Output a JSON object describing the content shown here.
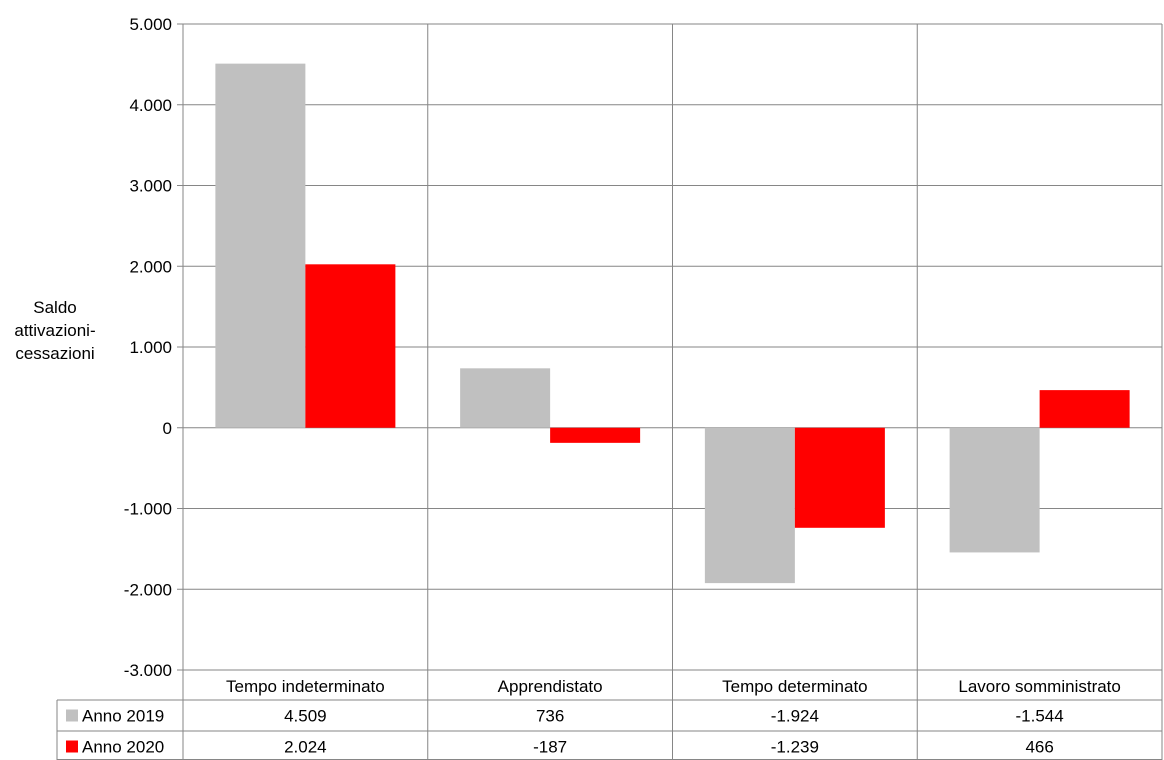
{
  "chart_data": {
    "type": "bar",
    "categories": [
      "Tempo indeterminato",
      "Apprendistato",
      "Tempo determinato",
      "Lavoro somministrato"
    ],
    "series": [
      {
        "name": "Anno 2019",
        "values": [
          4509,
          736,
          -1924,
          -1544
        ],
        "labels": [
          "4.509",
          "736",
          "-1.924",
          "-1.544"
        ],
        "color": "#c0c0c0"
      },
      {
        "name": "Anno 2020",
        "values": [
          2024,
          -187,
          -1239,
          466
        ],
        "labels": [
          "2.024",
          "-187",
          "-1.239",
          "466"
        ],
        "color": "#ff0000"
      }
    ],
    "ylabel_lines": [
      "Saldo",
      "attivazioni-",
      "cessazioni"
    ],
    "ylim": [
      -3000,
      5000
    ],
    "yticks": [
      5000,
      4000,
      3000,
      2000,
      1000,
      0,
      -1000,
      -2000,
      -3000
    ],
    "ytick_labels": [
      "5.000",
      "4.000",
      "3.000",
      "2.000",
      "1.000",
      "0",
      "-1.000",
      "-2.000",
      "-3.000"
    ],
    "grid": true,
    "legend": "data-table"
  }
}
